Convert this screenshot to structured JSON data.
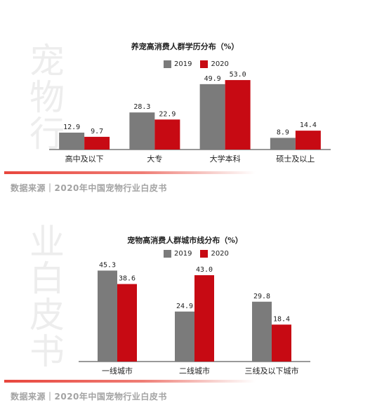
{
  "colors": {
    "y2019": "#7b7b7b",
    "y2020": "#c70a13",
    "source": "#a3a3a3"
  },
  "watermark": {
    "top_text": "宠物行",
    "bottom_text": "业白皮书"
  },
  "source_text": "数据来源｜2020年中国宠物行业白皮书",
  "chart_data": [
    {
      "type": "bar",
      "title": "养宠高消费人群学历分布（%）",
      "categories": [
        "高中及以下",
        "大专",
        "大学本科",
        "硕士及以上"
      ],
      "series": [
        {
          "name": "2019",
          "values": [
            12.9,
            28.3,
            49.9,
            8.9
          ]
        },
        {
          "name": "2020",
          "values": [
            9.7,
            22.9,
            53.0,
            14.4
          ]
        }
      ],
      "ylim": [
        0,
        60
      ],
      "grid": false,
      "legend": "top-center"
    },
    {
      "type": "bar",
      "title": "宠物高消费人群城市线分布（%）",
      "categories": [
        "一线城市",
        "二线城市",
        "三线及以下城市"
      ],
      "series": [
        {
          "name": "2019",
          "values": [
            45.3,
            24.9,
            29.8
          ]
        },
        {
          "name": "2020",
          "values": [
            38.6,
            43.0,
            18.4
          ]
        }
      ],
      "ylim": [
        0,
        50
      ],
      "grid": false,
      "legend": "top-center"
    }
  ]
}
